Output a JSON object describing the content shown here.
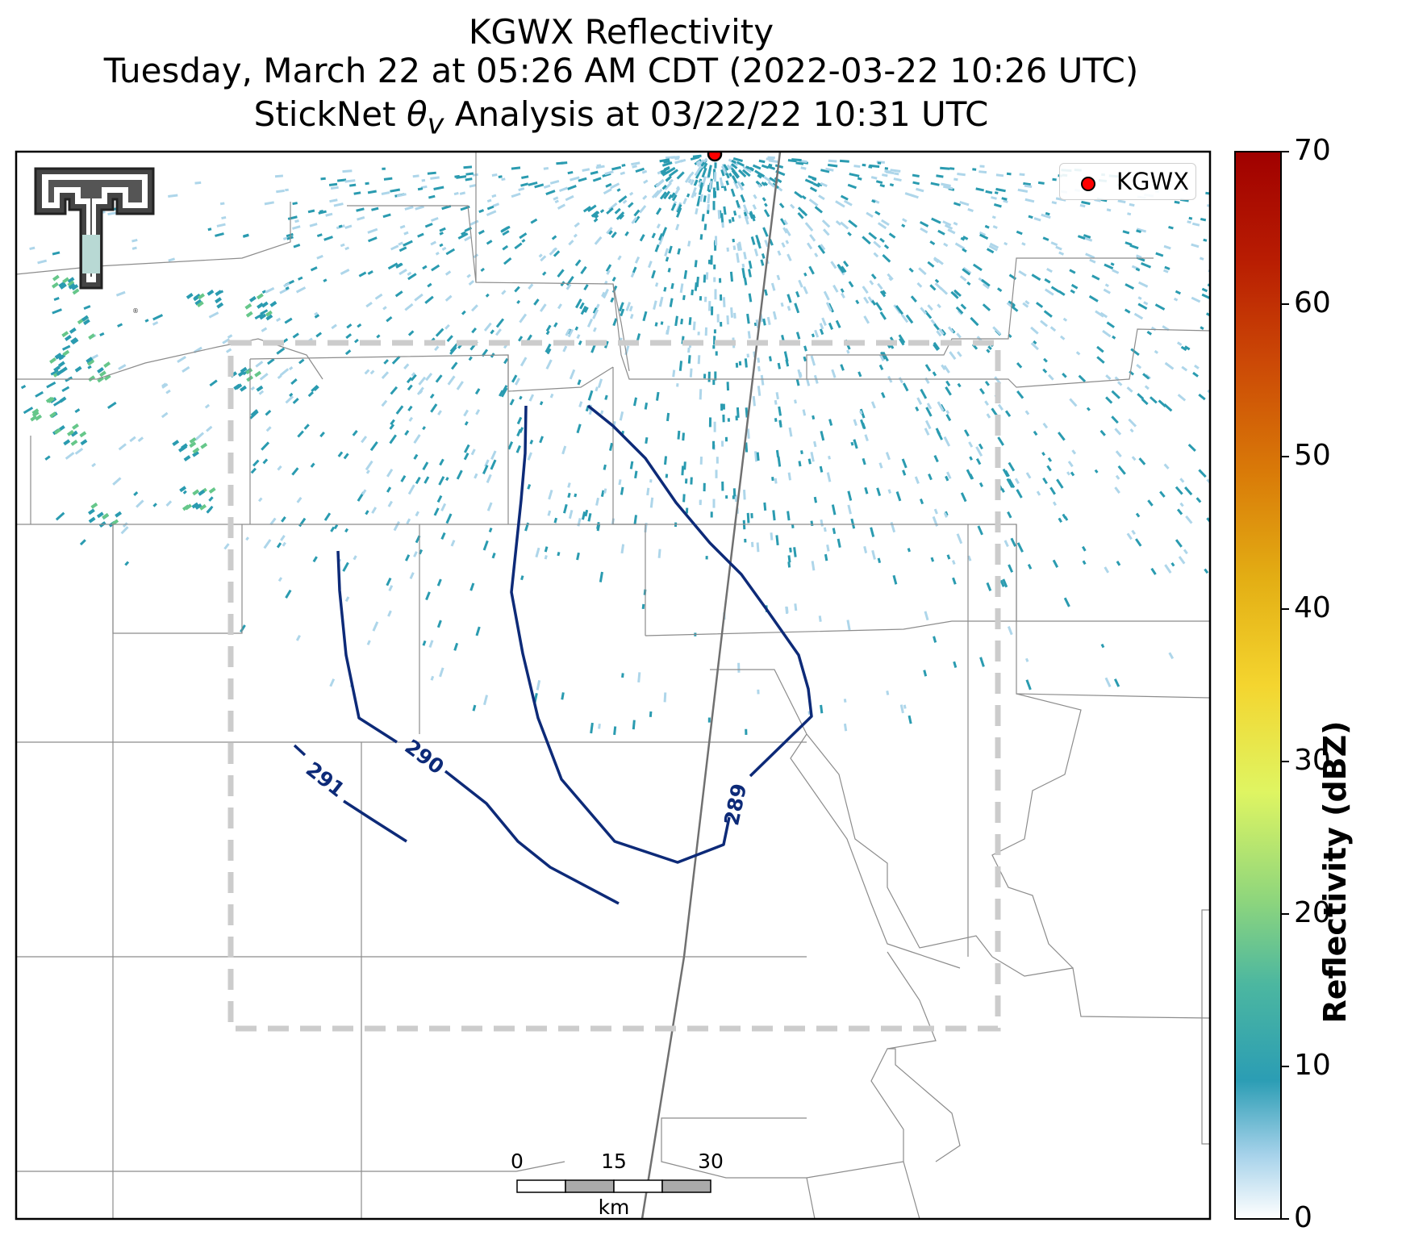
{
  "title": {
    "line1": "KGWX Reflectivity",
    "line2": "Tuesday, March 22 at 05:26 AM CDT (2022-03-22 10:26 UTC)",
    "line3_prefix": "StickNet ",
    "line3_symbol": "θ",
    "line3_subscript": "v",
    "line3_suffix": " Analysis at 03/22/22 10:31 UTC"
  },
  "legend": {
    "label": "KGWX",
    "marker_color": "#ff0000"
  },
  "colorbar": {
    "title": "Reflectivity (dBZ)",
    "ticks": [
      "0",
      "10",
      "20",
      "30",
      "40",
      "50",
      "60",
      "70"
    ],
    "min": 0,
    "max": 70
  },
  "contours": {
    "labels": [
      "289",
      "290",
      "291"
    ],
    "color": "#0d2a78"
  },
  "scale_bar": {
    "ticks": [
      "0",
      "15",
      "30"
    ],
    "unit": "km"
  },
  "colors": {
    "county_lines": "#8c8c8c",
    "track_line": "#707070",
    "domain_box": "#cccccc",
    "echo_teal": "#2a9bb0",
    "echo_light": "#aed6ea",
    "echo_green": "#66c78a"
  },
  "logo": {
    "name": "texas-tech-double-t-logo"
  }
}
